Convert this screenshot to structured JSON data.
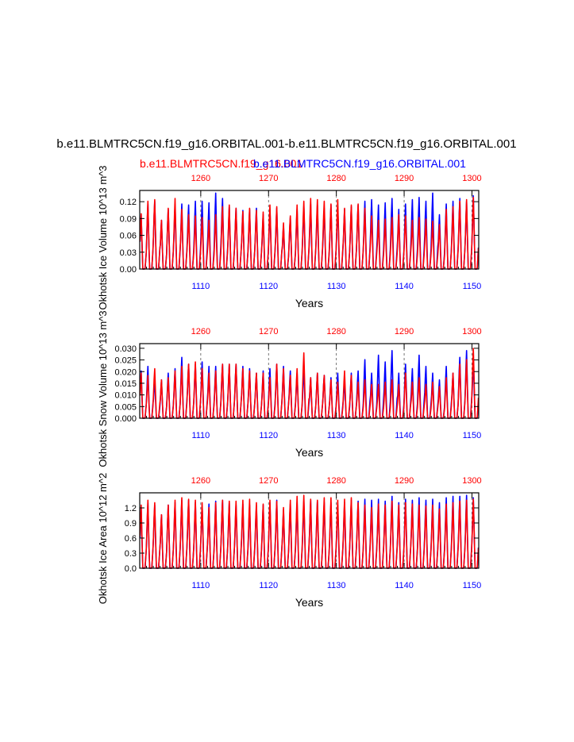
{
  "main_title": "b.e11.BLMTRC5CN.f19_g16.ORBITAL.001-b.e11.BLMTRC5CN.f19_g16.ORBITAL.001",
  "legend": {
    "red_label": "b.e11.BLMTRC5CN.f19_g16.001",
    "blue_label": "b.e11.BLMTRC5CN.f19_g16.ORBITAL.001"
  },
  "colors": {
    "red": "#ff0000",
    "blue": "#0000ff",
    "frame": "#000000",
    "grid": "#555555"
  },
  "chart_data": [
    {
      "type": "line",
      "name": "Okhotsk Ice Volume",
      "ylabel": "Okhotsk Ice Volume 10^13 m^3",
      "xlabel": "Years",
      "ylim": [
        0,
        0.14
      ],
      "yticks": [
        "0.00",
        "0.03",
        "0.06",
        "0.09",
        "0.12"
      ],
      "yvals": [
        0,
        0.03,
        0.06,
        0.09,
        0.12
      ],
      "bottom_axis": {
        "label_color": "blue",
        "range": [
          1101,
          1151
        ],
        "ticks": [
          "1110",
          "1120",
          "1130",
          "1140",
          "1150"
        ]
      },
      "top_axis": {
        "label_color": "red",
        "range": [
          1251,
          1301
        ],
        "ticks": [
          "1260",
          "1270",
          "1280",
          "1290",
          "1300"
        ]
      },
      "series": [
        {
          "name": "b.e11.BLMTRC5CN.f19_g16.ORBITAL.001",
          "color": "blue",
          "years": [
            1101,
            1102,
            1103,
            1104,
            1105,
            1106,
            1107,
            1108,
            1109,
            1110,
            1111,
            1112,
            1113,
            1114,
            1115,
            1116,
            1117,
            1118,
            1119,
            1120,
            1121,
            1122,
            1123,
            1124,
            1125,
            1126,
            1127,
            1128,
            1129,
            1130,
            1131,
            1132,
            1133,
            1134,
            1135,
            1136,
            1137,
            1138,
            1139,
            1140,
            1141,
            1142,
            1143,
            1144,
            1145,
            1146,
            1147,
            1148,
            1149,
            1150
          ],
          "annual_max": [
            0.1,
            0.12,
            0.125,
            0.09,
            0.11,
            0.118,
            0.12,
            0.118,
            0.125,
            0.125,
            0.122,
            0.14,
            0.13,
            0.115,
            0.112,
            0.108,
            0.11,
            0.112,
            0.1,
            0.11,
            0.112,
            0.08,
            0.095,
            0.11,
            0.115,
            0.12,
            0.118,
            0.112,
            0.118,
            0.115,
            0.11,
            0.115,
            0.118,
            0.125,
            0.128,
            0.118,
            0.122,
            0.13,
            0.11,
            0.12,
            0.128,
            0.132,
            0.125,
            0.14,
            0.1,
            0.12,
            0.125,
            0.13,
            0.125,
            0.135
          ]
        },
        {
          "name": "b.e11.BLMTRC5CN.f19_g16.001",
          "color": "red",
          "years": [
            1101,
            1102,
            1103,
            1104,
            1105,
            1106,
            1107,
            1108,
            1109,
            1110,
            1111,
            1112,
            1113,
            1114,
            1115,
            1116,
            1117,
            1118,
            1119,
            1120,
            1121,
            1122,
            1123,
            1124,
            1125,
            1126,
            1127,
            1128,
            1129,
            1130,
            1131,
            1132,
            1133,
            1134,
            1135,
            1136,
            1137,
            1138,
            1139,
            1140,
            1141,
            1142,
            1143,
            1144,
            1145,
            1146,
            1147,
            1148,
            1149,
            1150
          ],
          "annual_max": [
            0.102,
            0.125,
            0.128,
            0.09,
            0.112,
            0.13,
            0.11,
            0.1,
            0.098,
            0.095,
            0.09,
            0.1,
            0.115,
            0.118,
            0.112,
            0.106,
            0.112,
            0.108,
            0.105,
            0.118,
            0.115,
            0.085,
            0.098,
            0.118,
            0.125,
            0.13,
            0.128,
            0.125,
            0.12,
            0.128,
            0.112,
            0.118,
            0.12,
            0.112,
            0.098,
            0.09,
            0.092,
            0.095,
            0.1,
            0.098,
            0.09,
            0.095,
            0.092,
            0.088,
            0.082,
            0.11,
            0.115,
            0.125,
            0.128,
            0.132
          ]
        }
      ]
    },
    {
      "type": "line",
      "name": "Okhotsk Snow Volume",
      "ylabel": "Okhotsk Snow Volume 10^13 m^3",
      "xlabel": "Years",
      "ylim": [
        0,
        0.032
      ],
      "yticks": [
        "0.000",
        "0.005",
        "0.010",
        "0.015",
        "0.020",
        "0.025",
        "0.030"
      ],
      "yvals": [
        0,
        0.005,
        0.01,
        0.015,
        0.02,
        0.025,
        0.03
      ],
      "bottom_axis": {
        "label_color": "blue",
        "range": [
          1101,
          1151
        ],
        "ticks": [
          "1110",
          "1120",
          "1130",
          "1140",
          "1150"
        ]
      },
      "top_axis": {
        "label_color": "red",
        "range": [
          1251,
          1301
        ],
        "ticks": [
          "1260",
          "1270",
          "1280",
          "1290",
          "1300"
        ]
      },
      "series": [
        {
          "name": "b.e11.BLMTRC5CN.f19_g16.ORBITAL.001",
          "color": "blue",
          "years": [
            1101,
            1102,
            1103,
            1104,
            1105,
            1106,
            1107,
            1108,
            1109,
            1110,
            1111,
            1112,
            1113,
            1114,
            1115,
            1116,
            1117,
            1118,
            1119,
            1120,
            1121,
            1122,
            1123,
            1124,
            1125,
            1126,
            1127,
            1128,
            1129,
            1130,
            1131,
            1132,
            1133,
            1134,
            1135,
            1136,
            1137,
            1138,
            1139,
            1140,
            1141,
            1142,
            1143,
            1144,
            1145,
            1146,
            1147,
            1148,
            1149,
            1150
          ],
          "annual_max": [
            0.021,
            0.023,
            0.017,
            0.017,
            0.02,
            0.022,
            0.027,
            0.024,
            0.024,
            0.025,
            0.023,
            0.023,
            0.024,
            0.024,
            0.024,
            0.023,
            0.022,
            0.02,
            0.021,
            0.022,
            0.024,
            0.023,
            0.021,
            0.02,
            0.022,
            0.018,
            0.02,
            0.019,
            0.018,
            0.02,
            0.017,
            0.02,
            0.021,
            0.026,
            0.02,
            0.028,
            0.025,
            0.03,
            0.02,
            0.024,
            0.022,
            0.028,
            0.023,
            0.02,
            0.017,
            0.023,
            0.02,
            0.027,
            0.03,
            0.025
          ]
        },
        {
          "name": "b.e11.BLMTRC5CN.f19_g16.001",
          "color": "red",
          "years": [
            1101,
            1102,
            1103,
            1104,
            1105,
            1106,
            1107,
            1108,
            1109,
            1110,
            1111,
            1112,
            1113,
            1114,
            1115,
            1116,
            1117,
            1118,
            1119,
            1120,
            1121,
            1122,
            1123,
            1124,
            1125,
            1126,
            1127,
            1128,
            1129,
            1130,
            1131,
            1132,
            1133,
            1134,
            1135,
            1136,
            1137,
            1138,
            1139,
            1140,
            1141,
            1142,
            1143,
            1144,
            1145,
            1146,
            1147,
            1148,
            1149,
            1150
          ],
          "annual_max": [
            0.02,
            0.019,
            0.022,
            0.017,
            0.018,
            0.021,
            0.023,
            0.024,
            0.025,
            0.022,
            0.02,
            0.021,
            0.024,
            0.024,
            0.024,
            0.022,
            0.021,
            0.02,
            0.02,
            0.018,
            0.024,
            0.022,
            0.019,
            0.022,
            0.029,
            0.018,
            0.02,
            0.019,
            0.017,
            0.016,
            0.021,
            0.019,
            0.016,
            0.017,
            0.015,
            0.015,
            0.016,
            0.017,
            0.015,
            0.02,
            0.016,
            0.018,
            0.015,
            0.016,
            0.014,
            0.018,
            0.02,
            0.024,
            0.026,
            0.031
          ]
        }
      ]
    },
    {
      "type": "line",
      "name": "Okhotsk Ice Area",
      "ylabel": "Okhotsk Ice Area 10^12 m^2",
      "xlabel": "Years",
      "ylim": [
        0,
        1.5
      ],
      "yticks": [
        "0.0",
        "0.3",
        "0.6",
        "0.9",
        "1.2"
      ],
      "yvals": [
        0,
        0.3,
        0.6,
        0.9,
        1.2
      ],
      "bottom_axis": {
        "label_color": "blue",
        "range": [
          1101,
          1151
        ],
        "ticks": [
          "1110",
          "1120",
          "1130",
          "1140",
          "1150"
        ]
      },
      "top_axis": {
        "label_color": "red",
        "range": [
          1251,
          1301
        ],
        "ticks": [
          "1260",
          "1270",
          "1280",
          "1290",
          "1300"
        ]
      },
      "series": [
        {
          "name": "b.e11.BLMTRC5CN.f19_g16.ORBITAL.001",
          "color": "blue",
          "years": [
            1101,
            1102,
            1103,
            1104,
            1105,
            1106,
            1107,
            1108,
            1109,
            1110,
            1111,
            1112,
            1113,
            1114,
            1115,
            1116,
            1117,
            1118,
            1119,
            1120,
            1121,
            1122,
            1123,
            1124,
            1125,
            1126,
            1127,
            1128,
            1129,
            1130,
            1131,
            1132,
            1133,
            1134,
            1135,
            1136,
            1137,
            1138,
            1139,
            1140,
            1141,
            1142,
            1143,
            1144,
            1145,
            1146,
            1147,
            1148,
            1149,
            1150
          ],
          "annual_max": [
            1.25,
            1.35,
            1.3,
            1.1,
            1.3,
            1.35,
            1.4,
            1.4,
            1.35,
            1.3,
            1.32,
            1.38,
            1.4,
            1.35,
            1.3,
            1.32,
            1.3,
            1.28,
            1.3,
            1.35,
            1.4,
            1.2,
            1.32,
            1.35,
            1.38,
            1.4,
            1.38,
            1.35,
            1.35,
            1.3,
            1.35,
            1.4,
            1.38,
            1.42,
            1.4,
            1.42,
            1.38,
            1.48,
            1.35,
            1.42,
            1.4,
            1.45,
            1.4,
            1.42,
            1.35,
            1.45,
            1.48,
            1.48,
            1.5,
            1.45
          ]
        },
        {
          "name": "b.e11.BLMTRC5CN.f19_g16.001",
          "color": "red",
          "years": [
            1101,
            1102,
            1103,
            1104,
            1105,
            1106,
            1107,
            1108,
            1109,
            1110,
            1111,
            1112,
            1113,
            1114,
            1115,
            1116,
            1117,
            1118,
            1119,
            1120,
            1121,
            1122,
            1123,
            1124,
            1125,
            1126,
            1127,
            1128,
            1129,
            1130,
            1131,
            1132,
            1133,
            1134,
            1135,
            1136,
            1137,
            1138,
            1139,
            1140,
            1141,
            1142,
            1143,
            1144,
            1145,
            1146,
            1147,
            1148,
            1149,
            1150
          ],
          "annual_max": [
            1.3,
            1.4,
            1.35,
            1.1,
            1.3,
            1.4,
            1.45,
            1.42,
            1.4,
            1.35,
            1.25,
            1.35,
            1.4,
            1.38,
            1.38,
            1.4,
            1.42,
            1.35,
            1.32,
            1.4,
            1.38,
            1.25,
            1.4,
            1.48,
            1.5,
            1.42,
            1.4,
            1.45,
            1.45,
            1.4,
            1.42,
            1.45,
            1.35,
            1.3,
            1.25,
            1.32,
            1.3,
            1.38,
            1.3,
            1.35,
            1.32,
            1.3,
            1.28,
            1.3,
            1.22,
            1.32,
            1.35,
            1.38,
            1.4,
            1.42
          ]
        }
      ]
    }
  ]
}
